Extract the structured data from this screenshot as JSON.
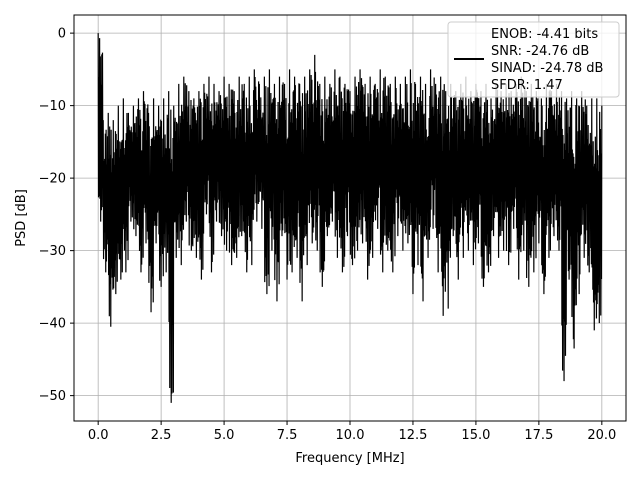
{
  "chart_data": {
    "type": "line",
    "xlabel": "Frequency [MHz]",
    "ylabel": "PSD [dB]",
    "xlim": [
      -0.96,
      20.96
    ],
    "ylim": [
      -53.5,
      2.5
    ],
    "xticks": [
      0.0,
      2.5,
      5.0,
      7.5,
      10.0,
      12.5,
      15.0,
      17.5,
      20.0
    ],
    "xtick_labels": [
      "0.0",
      "2.5",
      "5.0",
      "7.5",
      "10.0",
      "12.5",
      "15.0",
      "17.5",
      "20.0"
    ],
    "yticks": [
      0,
      -10,
      -20,
      -30,
      -40,
      -50
    ],
    "ytick_labels": [
      "0",
      "−10",
      "−20",
      "−30",
      "−40",
      "−50"
    ],
    "grid": true,
    "legend_position": "top-right",
    "legend": [
      "ENOB: -4.41 bits",
      "SNR: -24.76 dB",
      "SINAD: -24.78 dB",
      "SFDR: 1.47"
    ],
    "series": [
      {
        "color": "#000000",
        "x_start": 0.0,
        "x_step": 0.2,
        "lows": [
          -26,
          -33,
          -40.5,
          -36,
          -34,
          -33,
          -26,
          -28,
          -33,
          -29,
          -38.5,
          -29,
          -35,
          -33,
          -51,
          -31,
          -32,
          -26,
          -30,
          -31,
          -34,
          -25,
          -33,
          -26,
          -28,
          -30,
          -32,
          -31,
          -28,
          -33,
          -32,
          -26,
          -27,
          -36,
          -30,
          -37,
          -28,
          -34,
          -33,
          -31,
          -37,
          -32,
          -29,
          -30,
          -35,
          -28,
          -26,
          -31,
          -33,
          -28,
          -32,
          -30,
          -29,
          -34,
          -31,
          -27,
          -33,
          -30,
          -33,
          -28,
          -30,
          -29,
          -36,
          -32,
          -37,
          -31,
          -27,
          -33,
          -39,
          -38,
          -28,
          -34,
          -31,
          -30,
          -32,
          -29,
          -35,
          -33,
          -28,
          -31,
          -30,
          -32,
          -27,
          -34,
          -30,
          -35,
          -33,
          -29,
          -36,
          -31,
          -28,
          -30,
          -48,
          -34,
          -43.5,
          -36,
          -31,
          -33,
          -41,
          -40,
          -40.5
        ],
        "highs": [
          0,
          -12,
          -11,
          -12,
          -10,
          -9,
          -11,
          -10,
          -9,
          -8,
          -11,
          -9,
          -10,
          -9,
          -8,
          -10,
          -7,
          -6,
          -8,
          -9,
          -8,
          -7,
          -6,
          -7,
          -8,
          -6,
          -7,
          -8,
          -6,
          -7,
          -6,
          -5,
          -7,
          -6,
          -5,
          -7,
          -6,
          -7,
          -5,
          -6,
          -7,
          -6,
          -5,
          -3,
          -7,
          -6,
          -7,
          -5,
          -6,
          -7,
          -8,
          -6,
          -5,
          -7,
          -6,
          -7,
          -5,
          -6,
          -7,
          -6,
          -7,
          -6,
          -5,
          -7,
          -6,
          -7,
          -5,
          -7,
          -6,
          -8,
          -7,
          -8,
          -7,
          -6,
          -8,
          -7,
          -8,
          -7,
          -9,
          -7,
          -8,
          -7,
          -8,
          -7,
          -6,
          -8,
          -7,
          -8,
          -9,
          -7,
          -8,
          -7,
          -8,
          -9,
          -8,
          -9,
          -8,
          -10,
          -9,
          -9,
          -10
        ]
      }
    ]
  }
}
